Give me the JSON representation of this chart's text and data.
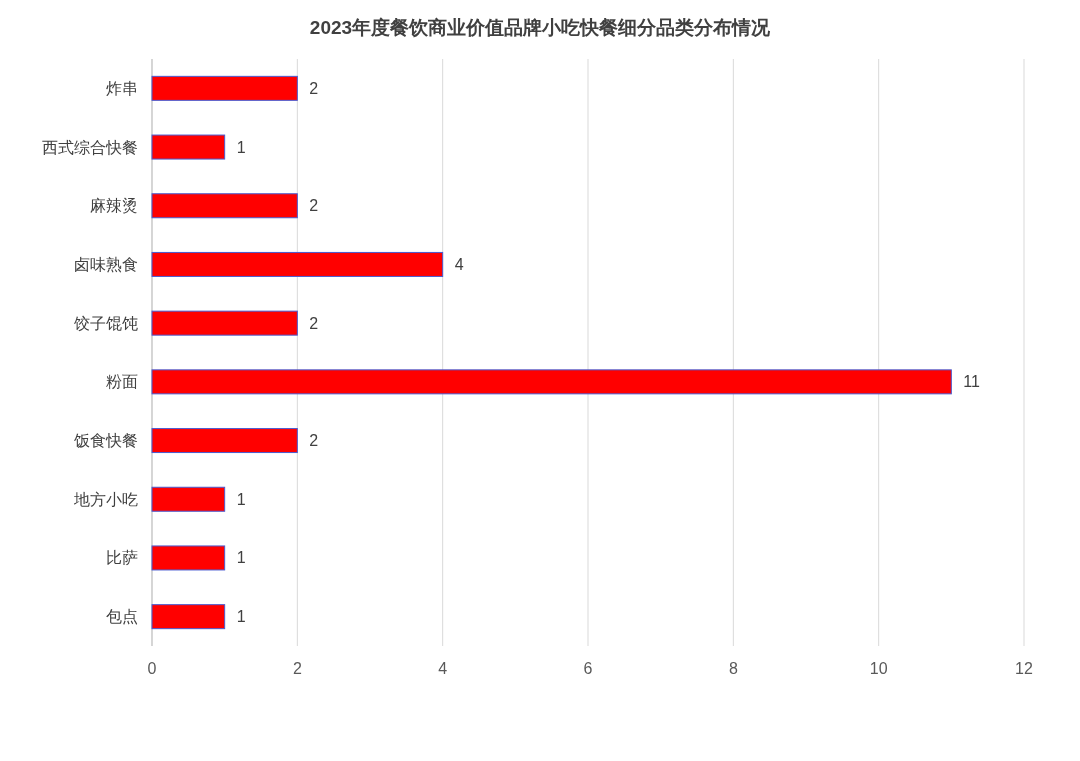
{
  "chart_data": {
    "type": "bar",
    "orientation": "horizontal",
    "title": "2023年度餐饮商业价值品牌小吃快餐细分品类分布情况",
    "categories": [
      "炸串",
      "西式综合快餐",
      "麻辣烫",
      "卤味熟食",
      "饺子馄饨",
      "粉面",
      "饭食快餐",
      "地方小吃",
      "比萨",
      "包点"
    ],
    "values": [
      2,
      1,
      2,
      4,
      2,
      11,
      2,
      1,
      1,
      1
    ],
    "color": "#ff0000",
    "xlim": [
      0,
      12
    ],
    "xticks": [
      0,
      2,
      4,
      6,
      8,
      10,
      12
    ],
    "grid": "x",
    "data_labels": true
  }
}
